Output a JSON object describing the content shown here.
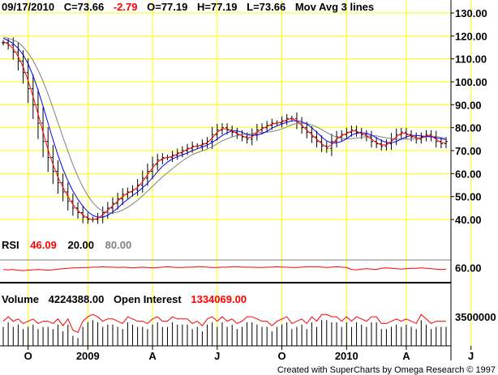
{
  "header": {
    "date": "09/17/2010",
    "close": "C=73.66",
    "change": "-2.79",
    "open": "O=77.19",
    "high": "H=77.19",
    "low": "L=73.66",
    "indicator": "Mov Avg 3 lines"
  },
  "rsi_header": {
    "label": "RSI",
    "value": "46.09",
    "lower": "20.00",
    "upper": "80.00"
  },
  "volume_header": {
    "label": "Volume",
    "value": "4224388.00",
    "oi_label": "Open Interest",
    "oi_value": "1334069.00"
  },
  "credit": "Created with SuperCharts by Omega Research © 1997",
  "colors": {
    "grid": "#ffff00",
    "price": "#000000",
    "ma_fast": "#ff0000",
    "ma_mid": "#0000ff",
    "ma_slow": "#808080",
    "rsi": "#ff0000",
    "volume": "#000000",
    "open_interest": "#ff0000",
    "change": "#ff0000"
  },
  "chart_data": {
    "type": "ohlc",
    "price_axis": {
      "ticks": [
        "130.00",
        "120.00",
        "110.00",
        "100.00",
        "90.00",
        "80.00",
        "70.00",
        "60.00",
        "50.00",
        "40.00"
      ],
      "ylim": [
        30,
        132
      ]
    },
    "rsi_axis": {
      "ticks": [
        "60.00"
      ],
      "ylim": [
        20,
        80
      ]
    },
    "volume_axis": {
      "ticks": [
        "3500000"
      ]
    },
    "x_months": [
      "O",
      "2009",
      "A",
      "J",
      "O",
      "2010",
      "A",
      "J"
    ],
    "x_month_index": [
      5,
      17,
      30,
      43,
      56,
      69,
      81,
      94
    ],
    "closes": [
      117,
      116,
      113,
      109,
      104,
      97,
      90,
      82,
      74,
      67,
      61,
      56,
      52,
      48,
      45,
      43,
      41,
      40,
      40,
      41,
      43,
      45,
      47,
      49,
      51,
      52,
      53,
      55,
      58,
      61,
      64,
      66,
      67,
      67,
      68,
      69,
      70,
      71,
      72,
      72,
      73,
      74,
      77,
      79,
      80,
      79,
      78,
      77,
      76,
      75,
      77,
      79,
      80,
      81,
      82,
      82,
      83,
      84,
      84,
      82,
      80,
      78,
      76,
      74,
      72,
      71,
      74,
      76,
      77,
      78,
      79,
      78,
      77,
      76,
      74,
      73,
      72,
      73,
      75,
      77,
      78,
      77,
      76,
      75,
      76,
      77,
      76,
      74,
      73,
      74
    ],
    "rsi_values": [
      55,
      54,
      55,
      53,
      52,
      53,
      54,
      55,
      54,
      53,
      54,
      56,
      57,
      58,
      59,
      59,
      60,
      60,
      61,
      61,
      62,
      61,
      61,
      60,
      61,
      60,
      59,
      60,
      61,
      60,
      59,
      60,
      61,
      62,
      61,
      60,
      60,
      61,
      61,
      62,
      62,
      61,
      60,
      60,
      61,
      61,
      62,
      62,
      61,
      61,
      61,
      60,
      60,
      61,
      61,
      62,
      61,
      61,
      60,
      60,
      61,
      62,
      62,
      62,
      61,
      60,
      61,
      62,
      61,
      60,
      55,
      54,
      56,
      57,
      56,
      55,
      58,
      59,
      58,
      57,
      56,
      57,
      58,
      58,
      59,
      58,
      57,
      56,
      55,
      56
    ],
    "volume_values": [
      3.3,
      3.5,
      3.3,
      3.4,
      3.2,
      3.3,
      3.4,
      3.2,
      3.3,
      3.3,
      3.2,
      3.4,
      3.1,
      3.4,
      2.9,
      2.8,
      3.3,
      3.5,
      3.6,
      3.5,
      3.3,
      3.4,
      3.4,
      3.3,
      3.2,
      3.5,
      3.4,
      3.3,
      3.3,
      3.2,
      3.4,
      3.5,
      3.3,
      3.3,
      3.5,
      3.4,
      3.4,
      3.4,
      3.2,
      3.3,
      3.1,
      3.4,
      3.5,
      3.3,
      3.5,
      3.3,
      3.4,
      3.2,
      3.3,
      3.5,
      3.5,
      3.4,
      3.3,
      3.3,
      3.1,
      3.3,
      3.4,
      3.5,
      3.2,
      3.3,
      3.4,
      3.2,
      3.5,
      3.3,
      3.6,
      3.6,
      3.5,
      3.5,
      3.3,
      3.5,
      3.3,
      3.5,
      3.4,
      3.3,
      3.5,
      3.5,
      3.2,
      3.2,
      3.3,
      3.4,
      3.3,
      3.4,
      3.3,
      3.2,
      3.6,
      3.4,
      3.2,
      3.3,
      3.3,
      3.3
    ]
  }
}
